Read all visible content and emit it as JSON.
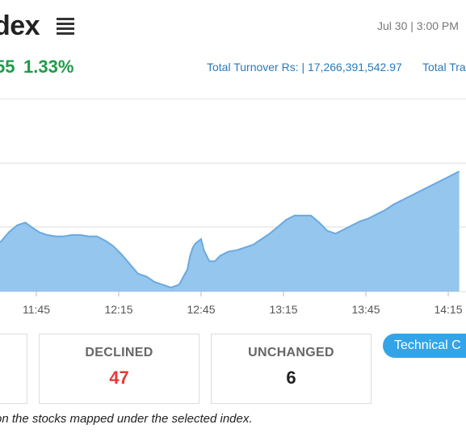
{
  "header": {
    "title": "dex",
    "datetime": "Jul 30 | 3:00 PM",
    "change_value": "55",
    "change_percent": "1.33%",
    "turnover_label": "Total Turnover Rs: | 17,266,391,542.97",
    "turnover_label_2": "Total Tra"
  },
  "colors": {
    "accent": "#34a4e8",
    "area_fill": "#94c6ee",
    "area_line": "#6aa9e0",
    "positive": "#1f9a4a",
    "negative": "#e53935"
  },
  "chart_data": {
    "type": "area",
    "x_ticks": [
      "11:45",
      "12:15",
      "12:45",
      "13:15",
      "13:45",
      "14:15"
    ],
    "series": [
      {
        "x": [
          "11:32",
          "11:35",
          "11:38",
          "11:41",
          "11:43",
          "11:46",
          "11:49",
          "11:52",
          "11:55",
          "11:58",
          "12:01",
          "12:04",
          "12:07",
          "12:10",
          "12:13",
          "12:16",
          "12:19",
          "12:22",
          "12:25",
          "12:28",
          "12:31",
          "12:34",
          "12:37",
          "12:40",
          "12:41",
          "12:42",
          "12:43",
          "12:45",
          "12:46",
          "12:48",
          "12:50",
          "12:52",
          "12:55",
          "12:58",
          "13:01",
          "13:04",
          "13:07",
          "13:10",
          "13:13",
          "13:16",
          "13:19",
          "13:22",
          "13:25",
          "13:28",
          "13:31",
          "13:34",
          "13:37",
          "13:40",
          "13:43",
          "13:46",
          "13:49",
          "13:52",
          "13:55",
          "13:58",
          "14:01",
          "14:04",
          "14:07",
          "14:10",
          "14:13",
          "14:16",
          "14:19"
        ],
        "y": [
          0.36,
          0.43,
          0.48,
          0.5,
          0.47,
          0.43,
          0.41,
          0.4,
          0.4,
          0.41,
          0.41,
          0.4,
          0.4,
          0.37,
          0.33,
          0.27,
          0.2,
          0.13,
          0.11,
          0.07,
          0.05,
          0.03,
          0.05,
          0.16,
          0.26,
          0.32,
          0.35,
          0.38,
          0.3,
          0.22,
          0.22,
          0.26,
          0.29,
          0.3,
          0.32,
          0.34,
          0.38,
          0.42,
          0.47,
          0.52,
          0.55,
          0.55,
          0.55,
          0.5,
          0.44,
          0.42,
          0.45,
          0.48,
          0.51,
          0.53,
          0.56,
          0.59,
          0.63,
          0.66,
          0.69,
          0.72,
          0.75,
          0.78,
          0.81,
          0.84,
          0.87
        ]
      }
    ],
    "grid": true,
    "legend": "none"
  },
  "stats": {
    "declined_label": "DECLINED",
    "declined_value": "47",
    "unchanged_label": "UNCHANGED",
    "unchanged_value": "6"
  },
  "technical_button_label": "Technical C",
  "footnote": "on the stocks mapped under the selected index."
}
